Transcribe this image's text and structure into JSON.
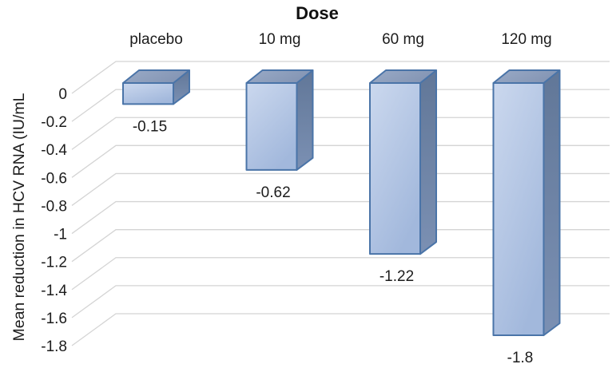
{
  "chart_data": {
    "type": "bar",
    "style": "3d-column",
    "title": "Dose",
    "categories": [
      "placebo",
      "10 mg",
      "60 mg",
      "120 mg"
    ],
    "series": [
      {
        "name": "Mean reduction",
        "values": [
          -0.15,
          -0.62,
          -1.22,
          -1.8
        ],
        "data_labels": [
          "-0.15",
          "-0.62",
          "-1.22",
          "-1.8"
        ]
      }
    ],
    "xlabel": "",
    "ylabel": "Mean reduction in HCV RNA (IU/mL",
    "ylim": [
      0,
      -1.8
    ],
    "yticks": [
      0,
      -0.2,
      -0.4,
      -0.6,
      -0.8,
      -1,
      -1.2,
      -1.4,
      -1.6,
      -1.8
    ],
    "ytick_labels": [
      "0",
      "-0.2",
      "-0.4",
      "-0.6",
      "-0.8",
      "-1",
      "-1.2",
      "-1.4",
      "-1.6",
      "-1.8"
    ],
    "grid": "horizontal-3d",
    "legend_position": "none",
    "colors": {
      "bar_front_light": "#cbd8ee",
      "bar_front_dark": "#a2b8dc",
      "bar_top_light": "#9aabc7",
      "bar_top_dark": "#8495b4",
      "bar_side_light": "#7b90b3",
      "bar_side_dark": "#617798",
      "bar_border": "#4a74a8",
      "gridline": "#d4d4d4",
      "text": "#1c1c1c",
      "background": "#ffffff"
    }
  }
}
